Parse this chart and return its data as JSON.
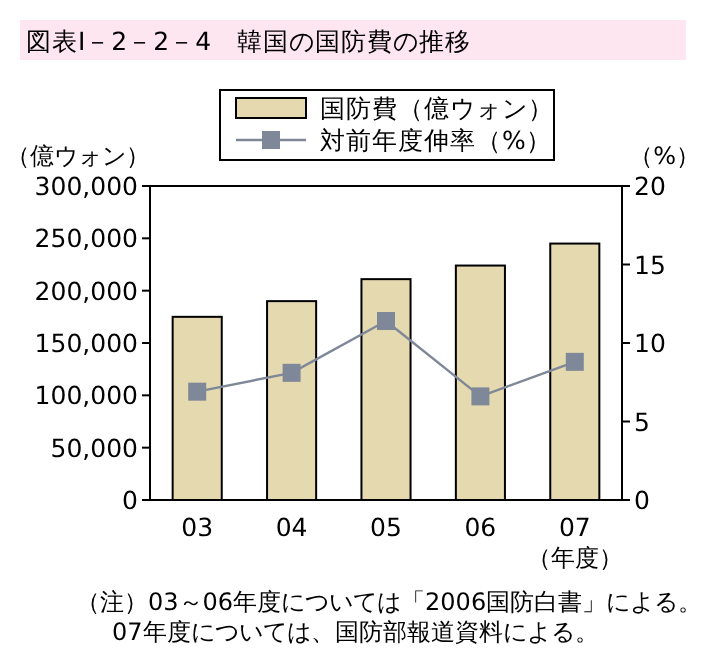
{
  "chart_data": {
    "type": "bar",
    "title": "図表Ⅰ－2－2－4　韓国の国防費の推移",
    "categories": [
      "03",
      "04",
      "05",
      "06",
      "07"
    ],
    "series": [
      {
        "name": "国防費（億ウォン）",
        "color": "#e5d9b0",
        "values": [
          175000,
          190000,
          211000,
          224000,
          245000
        ]
      },
      {
        "name": "対前年度伸率（%）",
        "type": "line",
        "axis": "y2",
        "color": "#7f8898",
        "marker": "square",
        "values": [
          6.9,
          8.1,
          11.4,
          6.6,
          8.8
        ]
      }
    ],
    "ylabel": "（億ウォン）",
    "y2label": "（%）",
    "xlabel": "（年度）",
    "ylim": [
      0,
      300000
    ],
    "yticks": [
      0,
      {
        "value": 50000,
        "label": "50,000"
      },
      {
        "value": 100000,
        "label": "100,000"
      },
      {
        "value": 150000,
        "label": "150,000"
      },
      {
        "value": 200000,
        "label": "200,000"
      },
      {
        "value": 250000,
        "label": "250,000"
      },
      {
        "value": 300000,
        "label": "300,000"
      }
    ],
    "y2lim": [
      0,
      20
    ],
    "y2ticks": [
      0,
      5,
      10,
      15,
      20
    ],
    "legend": "top",
    "annotations": [
      "（注）03～06年度については「2006国防白書」による。",
      "07年度については、国防部報道資料による。"
    ]
  }
}
